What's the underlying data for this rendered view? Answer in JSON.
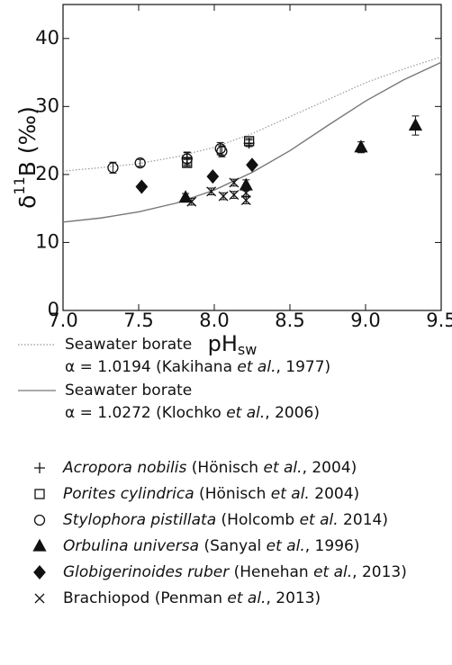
{
  "chart_data": {
    "type": "scatter",
    "ylabel_parts": [
      "δ",
      "11",
      "B (‰)"
    ],
    "xlabel_parts": [
      "pH",
      "sw"
    ],
    "xlim": [
      7.0,
      9.5
    ],
    "ylim": [
      0,
      45
    ],
    "xticks": [
      {
        "value": 7,
        "label": "7.0"
      },
      7.5,
      {
        "value": 8,
        "label": "8.0"
      },
      8.5,
      {
        "value": 9,
        "label": "9.0"
      },
      9.5
    ],
    "yticks": [
      0,
      10,
      20,
      30,
      40
    ],
    "lines": [
      {
        "name": "Seawater borate",
        "note_parts": [
          {
            "text": "α = 1.0194 (Kakihana ",
            "italic": false
          },
          {
            "text": "et al.",
            "italic": true
          },
          {
            "text": ", 1977)",
            "italic": false
          }
        ],
        "color": "#999",
        "dash": "dotted",
        "x": [
          7.0,
          7.25,
          7.5,
          7.75,
          8.0,
          8.25,
          8.5,
          8.75,
          9.0,
          9.25,
          9.5
        ],
        "values": [
          20.5,
          21.0,
          21.6,
          22.6,
          24.0,
          26.0,
          28.5,
          31.0,
          33.5,
          35.5,
          37.3
        ]
      },
      {
        "name": "Seawater borate",
        "note_parts": [
          {
            "text": "α = 1.0272 (Klochko ",
            "italic": false
          },
          {
            "text": "et al.",
            "italic": true
          },
          {
            "text": ", 2006)",
            "italic": false
          }
        ],
        "color": "#777",
        "dash": "solid",
        "x": [
          7.0,
          7.25,
          7.5,
          7.75,
          8.0,
          8.25,
          8.5,
          8.75,
          9.0,
          9.25,
          9.5
        ],
        "values": [
          13.0,
          13.6,
          14.5,
          15.8,
          17.7,
          20.3,
          23.5,
          27.2,
          30.8,
          33.9,
          36.5
        ]
      }
    ],
    "series": [
      {
        "name_parts": [
          {
            "text": "Acropora nobilis",
            "italic": true
          },
          {
            "text": " (Hönisch ",
            "italic": false
          },
          {
            "text": "et al.",
            "italic": true
          },
          {
            "text": ", 2004)",
            "italic": false
          }
        ],
        "marker": "plus",
        "color": "#111",
        "x": [
          7.82,
          8.23
        ],
        "values": [
          22.5,
          24.6
        ],
        "errors": [
          0.8,
          0.5
        ]
      },
      {
        "name_parts": [
          {
            "text": "Porites cylindrica",
            "italic": true
          },
          {
            "text": " (Hönisch ",
            "italic": false
          },
          {
            "text": "et al.",
            "italic": true
          },
          {
            "text": " 2004)",
            "italic": false
          }
        ],
        "marker": "square",
        "color": "#111",
        "x": [
          7.82,
          8.23
        ],
        "values": [
          21.7,
          24.9
        ],
        "errors": [
          0.5,
          0.4
        ]
      },
      {
        "name_parts": [
          {
            "text": "Stylophora pistillata",
            "italic": true
          },
          {
            "text": " (Holcomb ",
            "italic": false
          },
          {
            "text": "et al.",
            "italic": true
          },
          {
            "text": " 2014)",
            "italic": false
          }
        ],
        "marker": "circle",
        "color": "#111",
        "x": [
          7.33,
          7.51,
          7.82,
          8.04,
          8.05
        ],
        "values": [
          21.0,
          21.7,
          22.3,
          23.8,
          23.4
        ],
        "errors": [
          0.8,
          0.5,
          0.9,
          0.9,
          0.8
        ]
      },
      {
        "name_parts": [
          {
            "text": "Orbulina universa",
            "italic": true
          },
          {
            "text": " (Sanyal ",
            "italic": false
          },
          {
            "text": "et al.",
            "italic": true
          },
          {
            "text": ", 1996)",
            "italic": false
          }
        ],
        "marker": "triangle",
        "color": "#111",
        "x": [
          7.81,
          8.21,
          8.97,
          9.33
        ],
        "values": [
          16.6,
          18.4,
          24.0,
          27.2
        ],
        "errors": [
          0.6,
          0.8,
          0.8,
          1.4
        ]
      },
      {
        "name_parts": [
          {
            "text": "Globigerinoides  ruber",
            "italic": true
          },
          {
            "text": " (Henehan ",
            "italic": false
          },
          {
            "text": "et al.",
            "italic": true
          },
          {
            "text": ", 2013)",
            "italic": false
          }
        ],
        "marker": "diamond",
        "color": "#111",
        "x": [
          7.52,
          7.99,
          8.25
        ],
        "values": [
          18.2,
          19.7,
          21.4
        ],
        "errors": [
          0.3,
          0.3,
          0.3
        ]
      },
      {
        "name_parts": [
          {
            "text": "Brachiopod (Penman ",
            "italic": false
          },
          {
            "text": "et al.",
            "italic": true
          },
          {
            "text": ", 2013)",
            "italic": false
          }
        ],
        "marker": "x",
        "color": "#111",
        "x": [
          7.85,
          7.98,
          8.06,
          8.13,
          8.13,
          8.21,
          8.21
        ],
        "values": [
          16.0,
          17.5,
          16.8,
          18.8,
          17.0,
          17.3,
          16.2
        ],
        "errors": [
          0.5,
          0.5,
          0.5,
          0.5,
          0.5,
          0.5,
          0.5
        ]
      }
    ]
  }
}
